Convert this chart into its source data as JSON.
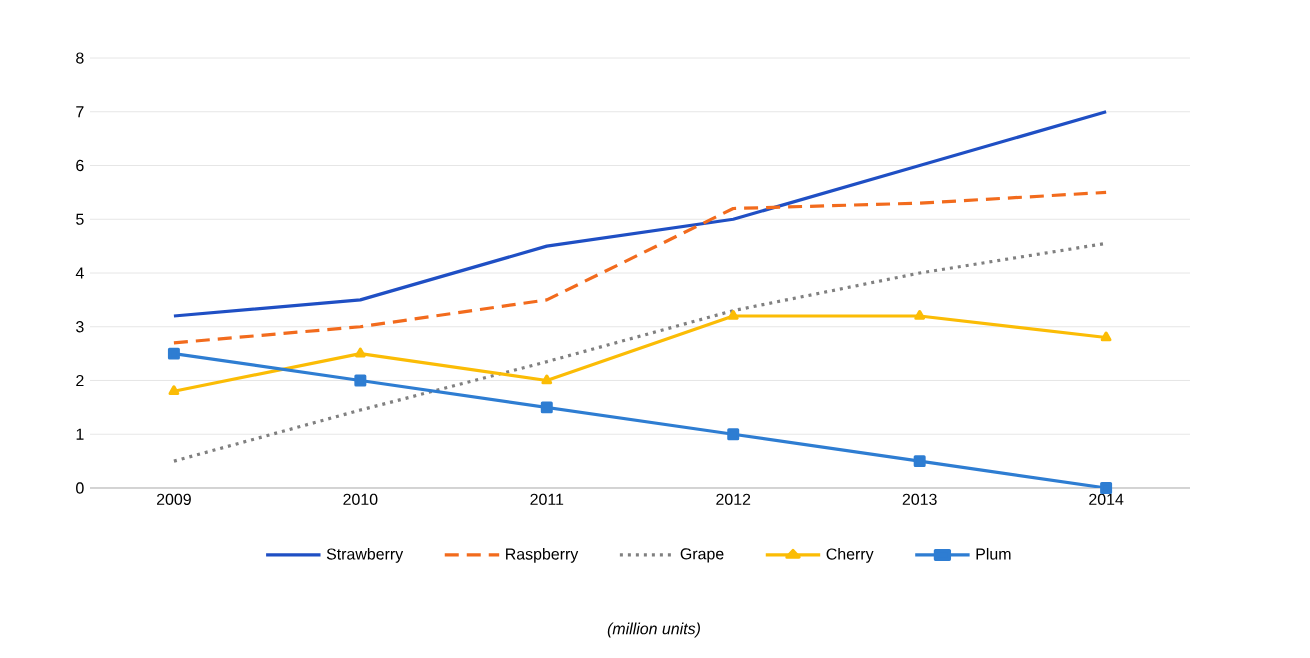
{
  "chart_data": {
    "type": "line",
    "categories": [
      "2009",
      "2010",
      "2011",
      "2012",
      "2013",
      "2014"
    ],
    "series": [
      {
        "name": "Strawberry",
        "color": "#1f4fc4",
        "line_style": "solid",
        "marker": "none",
        "values": [
          3.2,
          3.5,
          4.5,
          5,
          6,
          7
        ]
      },
      {
        "name": "Raspberry",
        "color": "#f26b1d",
        "line_style": "dashed",
        "marker": "none",
        "values": [
          2.7,
          3,
          3.5,
          5.2,
          5.3,
          5.5
        ]
      },
      {
        "name": "Grape",
        "color": "#808080",
        "line_style": "dotted",
        "marker": "none",
        "values": [
          0.5,
          1.45,
          2.35,
          3.3,
          4,
          4.55
        ]
      },
      {
        "name": "Cherry",
        "color": "#fbbc05",
        "line_style": "solid",
        "marker": "triangle",
        "values": [
          1.8,
          2.5,
          2,
          3.2,
          3.2,
          2.8
        ]
      },
      {
        "name": "Plum",
        "color": "#2e7dd2",
        "line_style": "solid",
        "marker": "square",
        "values": [
          2.5,
          2,
          1.5,
          1,
          0.5,
          0
        ]
      }
    ],
    "ylim": [
      0,
      8
    ],
    "yticks": [
      0,
      1,
      2,
      3,
      4,
      5,
      6,
      7,
      8
    ],
    "grid": "y",
    "legend": "bottom",
    "annotations": [
      "(million units)"
    ]
  }
}
